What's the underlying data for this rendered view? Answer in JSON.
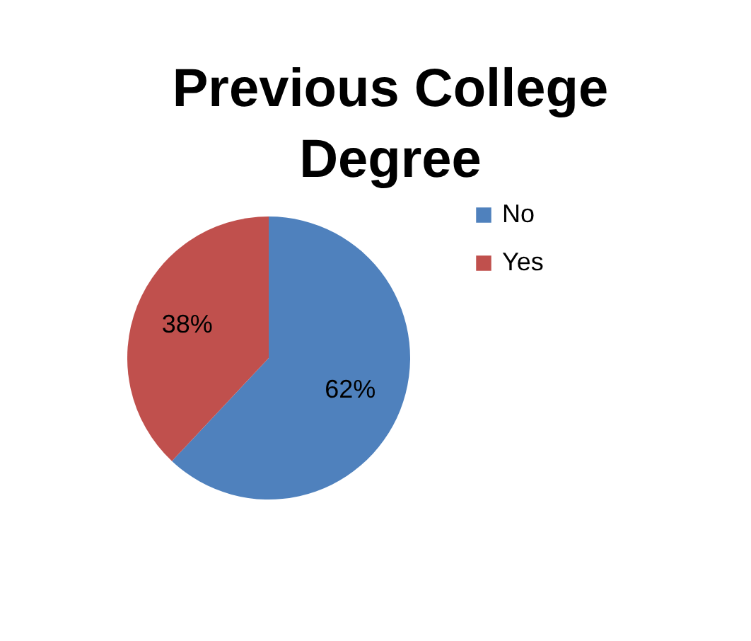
{
  "chart_data": {
    "type": "pie",
    "title": "Previous College Degree",
    "categories": [
      "No",
      "Yes"
    ],
    "values": [
      62,
      38
    ],
    "colors": [
      "#4f81bd",
      "#c0504d"
    ],
    "value_labels": [
      "62%",
      "38%"
    ],
    "legend": "right"
  }
}
